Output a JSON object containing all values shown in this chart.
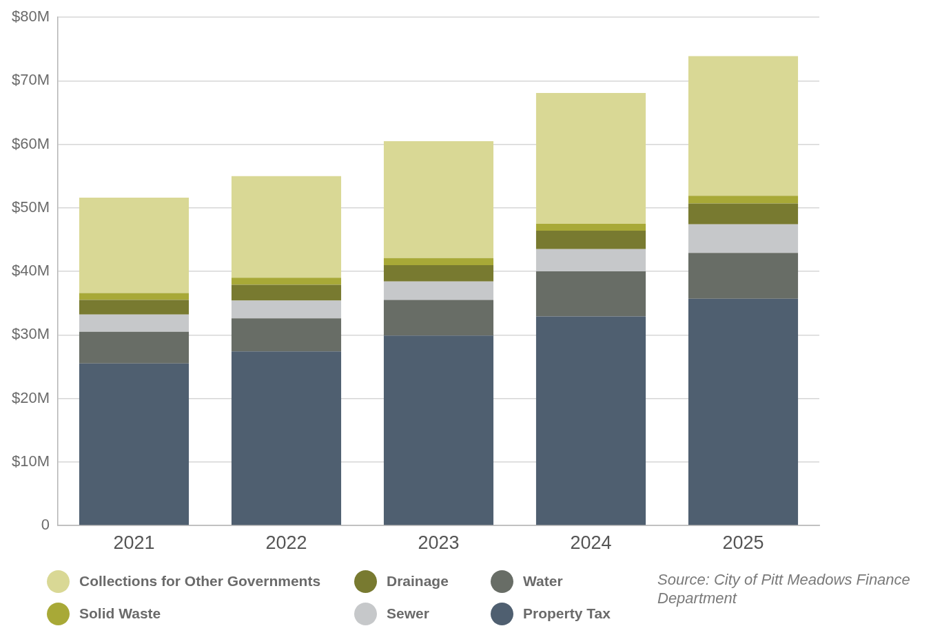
{
  "chart_data": {
    "type": "bar",
    "stacked": true,
    "categories": [
      "2021",
      "2022",
      "2023",
      "2024",
      "2025"
    ],
    "series": [
      {
        "name": "Property Tax",
        "color": "#4f5f70",
        "values": [
          25.5,
          27.4,
          29.9,
          32.9,
          35.7
        ]
      },
      {
        "name": "Water",
        "color": "#686d66",
        "values": [
          5.0,
          5.2,
          5.6,
          7.1,
          7.2
        ]
      },
      {
        "name": "Sewer",
        "color": "#c6c8ca",
        "values": [
          2.7,
          2.8,
          2.9,
          3.5,
          4.5
        ]
      },
      {
        "name": "Drainage",
        "color": "#787a30",
        "values": [
          2.3,
          2.5,
          2.6,
          2.9,
          3.3
        ]
      },
      {
        "name": "Solid Waste",
        "color": "#a8a937",
        "values": [
          1.1,
          1.1,
          1.1,
          1.1,
          1.2
        ]
      },
      {
        "name": "Collections for Other Governments",
        "color": "#d9d895",
        "values": [
          15.0,
          16.0,
          18.4,
          20.6,
          22.0
        ]
      }
    ],
    "ylim": [
      0,
      80
    ],
    "yticks": [
      0,
      {
        "value": 10,
        "label": "$10M"
      },
      {
        "value": 20,
        "label": "$20M"
      },
      {
        "value": 30,
        "label": "$30M"
      },
      {
        "value": 40,
        "label": "$40M"
      },
      {
        "value": 50,
        "label": "$50M"
      },
      {
        "value": 60,
        "label": "$60M"
      },
      {
        "value": 70,
        "label": "$70M"
      },
      {
        "value": 80,
        "label": "$80M"
      }
    ],
    "grid": "y",
    "legend": "bottom",
    "annotations": [
      "Source: City of Pitt Meadows Finance Department"
    ]
  }
}
